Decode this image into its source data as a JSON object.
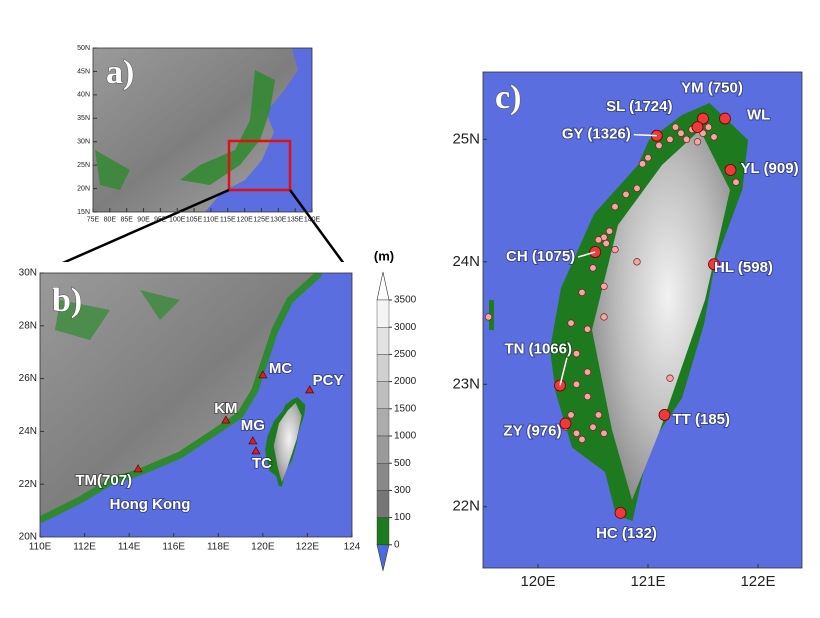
{
  "panels": {
    "a": {
      "label": "a)",
      "xlim": [
        75,
        140
      ],
      "ylim": [
        15,
        50
      ],
      "xticks": [
        {
          "value": 75,
          "label": "75E"
        },
        {
          "value": 80,
          "label": "80E"
        },
        {
          "value": 85,
          "label": "85E"
        },
        {
          "value": 90,
          "label": "90E"
        },
        {
          "value": 95,
          "label": "95E"
        },
        {
          "value": 100,
          "label": "100E"
        },
        {
          "value": 105,
          "label": "105E"
        },
        {
          "value": 110,
          "label": "110E"
        },
        {
          "value": 115,
          "label": "115E"
        },
        {
          "value": 120,
          "label": "120E"
        },
        {
          "value": 125,
          "label": "125E"
        },
        {
          "value": 130,
          "label": "130E"
        },
        {
          "value": 135,
          "label": "135E"
        },
        {
          "value": 140,
          "label": "140E"
        }
      ],
      "yticks": [
        {
          "value": 15,
          "label": "15N"
        },
        {
          "value": 20,
          "label": "20N"
        },
        {
          "value": 25,
          "label": "25N"
        },
        {
          "value": 30,
          "label": "30N"
        },
        {
          "value": 35,
          "label": "35N"
        },
        {
          "value": 40,
          "label": "40N"
        },
        {
          "value": 45,
          "label": "45N"
        },
        {
          "value": 50,
          "label": "50N"
        }
      ]
    },
    "b": {
      "label": "b)",
      "xlim": [
        110,
        124
      ],
      "ylim": [
        20,
        30
      ],
      "xticks": [
        {
          "value": 110,
          "label": "110E"
        },
        {
          "value": 112,
          "label": "112E"
        },
        {
          "value": 114,
          "label": "114E"
        },
        {
          "value": 116,
          "label": "116E"
        },
        {
          "value": 118,
          "label": "118E"
        },
        {
          "value": 120,
          "label": "120E"
        },
        {
          "value": 122,
          "label": "122E"
        },
        {
          "value": 124,
          "label": "124"
        }
      ],
      "yticks": [
        {
          "value": 20,
          "label": "20N"
        },
        {
          "value": 22,
          "label": "22N"
        },
        {
          "value": 24,
          "label": "24N"
        },
        {
          "value": 26,
          "label": "26N"
        },
        {
          "value": 28,
          "label": "28N"
        },
        {
          "value": 30,
          "label": "30N"
        }
      ],
      "stations": [
        {
          "label": "MC",
          "lon": 120.0,
          "lat": 26.14
        },
        {
          "label": "PCY",
          "lon": 122.1,
          "lat": 25.57,
          "color": "#ffff33"
        },
        {
          "label": "KM",
          "lon": 118.34,
          "lat": 24.43
        },
        {
          "label": "MG",
          "lon": 119.55,
          "lat": 23.64
        },
        {
          "label": "TC",
          "lon": 119.69,
          "lat": 23.26,
          "color": "#ffff33"
        },
        {
          "label": "TM(707)",
          "sublabel": "Hong Kong",
          "lon": 114.4,
          "lat": 22.58
        }
      ]
    },
    "c": {
      "label": "c)",
      "xlim": [
        119.5,
        122.4
      ],
      "ylim": [
        21.5,
        25.55
      ],
      "xticks": [
        {
          "value": 120,
          "label": "120E"
        },
        {
          "value": 121,
          "label": "121E"
        },
        {
          "value": 122,
          "label": "122E"
        }
      ],
      "yticks": [
        {
          "value": 22,
          "label": "22N"
        },
        {
          "value": 23,
          "label": "23N"
        },
        {
          "value": 24,
          "label": "24N"
        },
        {
          "value": 25,
          "label": "25N"
        }
      ],
      "stations": [
        {
          "label": "YM (750)",
          "lon": 121.5,
          "lat": 25.17
        },
        {
          "label": "SL (1724)",
          "lon": 121.45,
          "lat": 25.1
        },
        {
          "label": "WL",
          "lon": 121.7,
          "lat": 25.17
        },
        {
          "label": "GY (1326)",
          "lon": 121.08,
          "lat": 25.03
        },
        {
          "label": "YL (909)",
          "lon": 121.75,
          "lat": 24.75
        },
        {
          "label": "HL (598)",
          "lon": 121.6,
          "lat": 23.98
        },
        {
          "label": "CH (1075)",
          "lon": 120.52,
          "lat": 24.08
        },
        {
          "label": "TN (1066)",
          "lon": 120.2,
          "lat": 22.99
        },
        {
          "label": "TT (185)",
          "lon": 121.15,
          "lat": 22.75
        },
        {
          "label": "ZY (976)",
          "lon": 120.25,
          "lat": 22.68
        },
        {
          "label": "HC (132)",
          "lon": 120.75,
          "lat": 21.95
        }
      ],
      "minor_stations": [
        [
          121.3,
          25.05
        ],
        [
          121.35,
          25.0
        ],
        [
          121.4,
          25.08
        ],
        [
          121.5,
          25.05
        ],
        [
          121.55,
          25.1
        ],
        [
          121.6,
          25.02
        ],
        [
          121.25,
          25.1
        ],
        [
          121.45,
          24.98
        ],
        [
          121.2,
          25.0
        ],
        [
          121.1,
          24.95
        ],
        [
          121.0,
          24.85
        ],
        [
          120.95,
          24.8
        ],
        [
          120.9,
          24.6
        ],
        [
          120.8,
          24.55
        ],
        [
          120.7,
          24.45
        ],
        [
          121.8,
          24.65
        ],
        [
          120.65,
          24.25
        ],
        [
          120.62,
          24.15
        ],
        [
          120.6,
          24.2
        ],
        [
          120.55,
          24.18
        ],
        [
          120.7,
          24.1
        ],
        [
          120.9,
          24.0
        ],
        [
          120.5,
          23.95
        ],
        [
          120.4,
          23.75
        ],
        [
          120.6,
          23.8
        ],
        [
          120.3,
          23.5
        ],
        [
          120.45,
          23.45
        ],
        [
          120.6,
          23.55
        ],
        [
          120.35,
          23.25
        ],
        [
          120.45,
          23.1
        ],
        [
          120.35,
          23.0
        ],
        [
          121.2,
          23.05
        ],
        [
          120.45,
          22.9
        ],
        [
          120.3,
          22.75
        ],
        [
          120.35,
          22.6
        ],
        [
          120.4,
          22.55
        ],
        [
          120.5,
          22.65
        ],
        [
          120.55,
          22.75
        ],
        [
          120.6,
          22.6
        ],
        [
          120.25,
          22.65
        ],
        [
          119.55,
          23.55
        ]
      ]
    }
  },
  "colorbar": {
    "unit": "(m)",
    "levels": [
      3500,
      3000,
      2500,
      2000,
      1500,
      1000,
      500,
      300,
      100,
      0
    ]
  }
}
